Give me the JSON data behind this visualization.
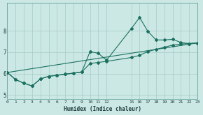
{
  "xlabel": "Humidex (Indice chaleur)",
  "background_color": "#cce8e4",
  "grid_color": "#aad0cc",
  "line_color": "#1a7060",
  "xlim": [
    0,
    23
  ],
  "ylim": [
    4.8,
    9.3
  ],
  "xticks": [
    0,
    1,
    2,
    3,
    4,
    5,
    6,
    7,
    8,
    9,
    10,
    11,
    12,
    15,
    16,
    17,
    18,
    19,
    20,
    21,
    22,
    23
  ],
  "yticks": [
    5,
    6,
    7,
    8
  ],
  "curve1_x": [
    0,
    1,
    2,
    3,
    4,
    5,
    6,
    7,
    8,
    9,
    10,
    11,
    12,
    15,
    16,
    17,
    18,
    19,
    20,
    21,
    22,
    23
  ],
  "curve1_y": [
    6.05,
    5.72,
    5.55,
    5.42,
    5.75,
    5.87,
    5.92,
    5.97,
    6.02,
    6.07,
    6.47,
    6.52,
    6.57,
    6.75,
    6.85,
    7.03,
    7.13,
    7.23,
    7.33,
    7.38,
    7.4,
    7.43
  ],
  "curve2_x": [
    0,
    1,
    2,
    3,
    4,
    5,
    6,
    7,
    8,
    9,
    10,
    11,
    12,
    15,
    16,
    17,
    18,
    19,
    20,
    21,
    22,
    23
  ],
  "curve2_y": [
    6.05,
    5.72,
    5.55,
    5.42,
    5.75,
    5.87,
    5.92,
    5.97,
    6.02,
    6.07,
    7.02,
    6.95,
    6.62,
    8.1,
    8.62,
    7.97,
    7.57,
    7.57,
    7.6,
    7.45,
    7.4,
    7.43
  ],
  "curve3_x": [
    0,
    23
  ],
  "curve3_y": [
    6.05,
    7.43
  ]
}
